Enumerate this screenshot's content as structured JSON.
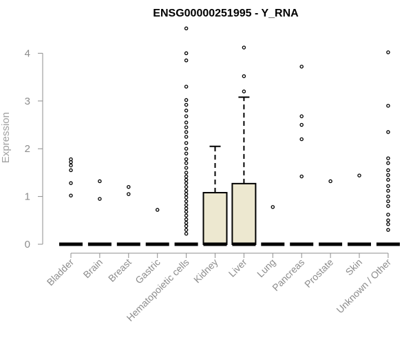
{
  "chart_data": {
    "type": "box",
    "title": "ENSG00000251995 - Y_RNA",
    "ylabel": "Expression",
    "xlabel": "",
    "ylim": [
      0,
      4.3
    ],
    "yticks": [
      0,
      1,
      2,
      3,
      4
    ],
    "box_fill": "#ede8d0",
    "categories": [
      "Bladder",
      "Brain",
      "Breast",
      "Gastric",
      "Hematopoietic cells",
      "Kidney",
      "Liver",
      "Lung",
      "Pancreas",
      "Prostate",
      "Skin",
      "Unknown / Other"
    ],
    "boxes": [
      {
        "q1": 0,
        "median": 0,
        "q3": 0,
        "whisker_low": 0,
        "whisker_high": 0,
        "outliers": [
          1.02,
          1.28,
          1.55,
          1.65,
          1.72,
          1.78
        ]
      },
      {
        "q1": 0,
        "median": 0,
        "q3": 0,
        "whisker_low": 0,
        "whisker_high": 0,
        "outliers": [
          0.95,
          1.32
        ]
      },
      {
        "q1": 0,
        "median": 0,
        "q3": 0,
        "whisker_low": 0,
        "whisker_high": 0,
        "outliers": [
          1.05,
          1.2
        ]
      },
      {
        "q1": 0,
        "median": 0,
        "q3": 0,
        "whisker_low": 0,
        "whisker_high": 0,
        "outliers": [
          0.72
        ]
      },
      {
        "q1": 0,
        "median": 0,
        "q3": 0,
        "whisker_low": 0,
        "whisker_high": 0,
        "outliers": [
          0.22,
          0.3,
          0.38,
          0.45,
          0.52,
          0.6,
          0.68,
          0.75,
          0.82,
          0.9,
          0.98,
          1.05,
          1.12,
          1.2,
          1.28,
          1.35,
          1.42,
          1.5,
          1.6,
          1.7,
          1.78,
          1.9,
          2.0,
          2.12,
          2.25,
          2.35,
          2.45,
          2.55,
          2.68,
          2.8,
          2.92,
          3.02,
          3.3,
          3.85,
          4.0,
          4.52
        ]
      },
      {
        "q1": 0,
        "median": 0,
        "q3": 1.08,
        "whisker_low": 0,
        "whisker_high": 2.05,
        "outliers": []
      },
      {
        "q1": 0,
        "median": 0,
        "q3": 1.27,
        "whisker_low": 0,
        "whisker_high": 3.08,
        "outliers": [
          3.2,
          3.52,
          4.12
        ]
      },
      {
        "q1": 0,
        "median": 0,
        "q3": 0,
        "whisker_low": 0,
        "whisker_high": 0,
        "outliers": [
          0.78
        ]
      },
      {
        "q1": 0,
        "median": 0,
        "q3": 0,
        "whisker_low": 0,
        "whisker_high": 0,
        "outliers": [
          1.42,
          2.2,
          2.5,
          2.68,
          3.72
        ]
      },
      {
        "q1": 0,
        "median": 0,
        "q3": 0,
        "whisker_low": 0,
        "whisker_high": 0,
        "outliers": [
          1.32
        ]
      },
      {
        "q1": 0,
        "median": 0,
        "q3": 0,
        "whisker_low": 0,
        "whisker_high": 0,
        "outliers": [
          1.44
        ]
      },
      {
        "q1": 0,
        "median": 0,
        "q3": 0,
        "whisker_low": 0,
        "whisker_high": 0,
        "outliers": [
          0.3,
          0.42,
          0.5,
          0.62,
          0.8,
          0.9,
          1.0,
          1.12,
          1.22,
          1.35,
          1.45,
          1.55,
          1.7,
          1.8,
          2.35,
          2.9,
          4.02
        ]
      }
    ]
  }
}
